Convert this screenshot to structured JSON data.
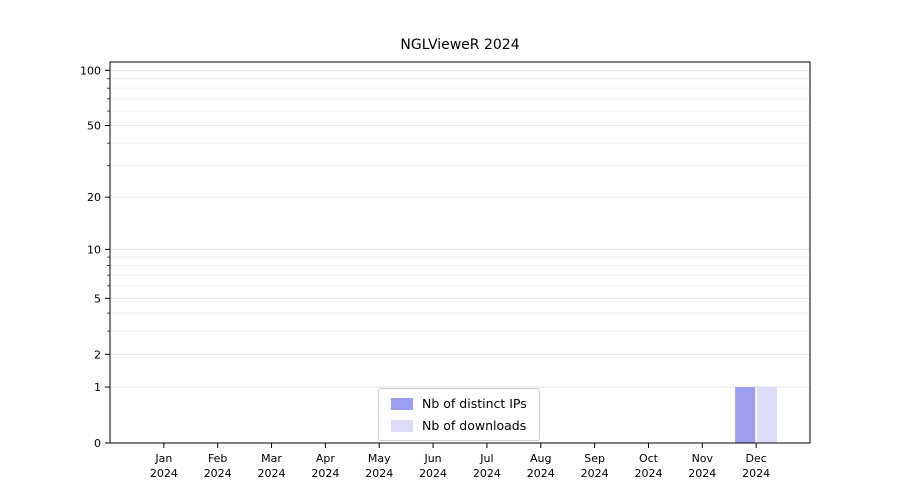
{
  "title": "NGLVieweR 2024",
  "legend": {
    "items": [
      {
        "label": "Nb of distinct IPs",
        "color": "#9e9ef0"
      },
      {
        "label": "Nb of downloads",
        "color": "#dcdcf8"
      }
    ]
  },
  "chart_data": {
    "type": "bar",
    "title": "NGLVieweR 2024",
    "categories": [
      "Jan",
      "Feb",
      "Mar",
      "Apr",
      "May",
      "Jun",
      "Jul",
      "Aug",
      "Sep",
      "Oct",
      "Nov",
      "Dec"
    ],
    "category_year": "2024",
    "series": [
      {
        "name": "Nb of distinct IPs",
        "color": "#9e9ef0",
        "values": [
          0,
          0,
          0,
          0,
          0,
          0,
          0,
          0,
          0,
          0,
          0,
          1
        ]
      },
      {
        "name": "Nb of downloads",
        "color": "#dcdcf8",
        "values": [
          0,
          0,
          0,
          0,
          0,
          0,
          0,
          0,
          0,
          0,
          0,
          1
        ]
      }
    ],
    "xlabel": "",
    "ylabel": "",
    "y_scale": "log1p",
    "y_ticks": [
      0,
      1,
      2,
      5,
      10,
      20,
      50,
      100
    ],
    "y_minor_ticks": [
      3,
      4,
      6,
      7,
      8,
      9,
      30,
      40,
      60,
      70,
      80,
      90
    ],
    "ylim": [
      0,
      111
    ],
    "grid": true,
    "legend_position": "lower center inside"
  }
}
